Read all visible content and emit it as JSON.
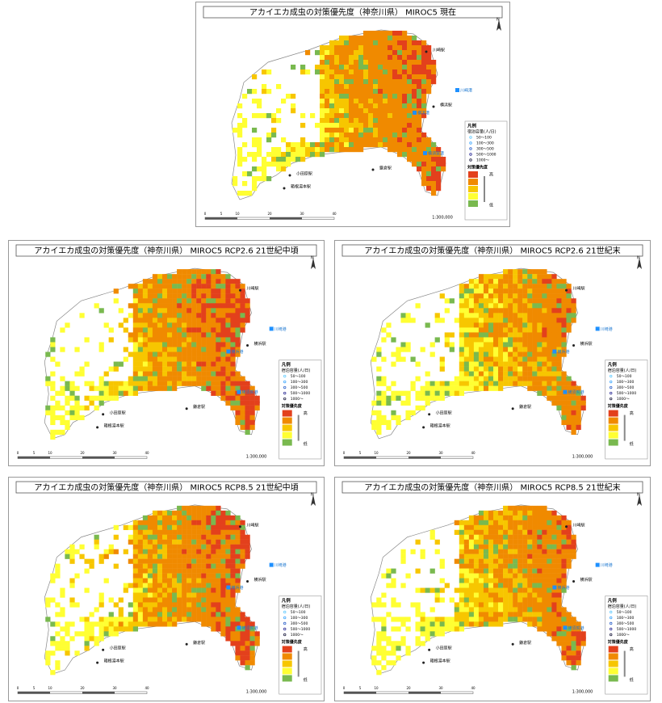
{
  "panels": [
    {
      "title": "アカイエカ成虫の対策優先度（神奈川県） MIROC5 現在",
      "scale": "1:300,000"
    },
    {
      "title": "アカイエカ成虫の対策優先度（神奈川県） MIROC5 RCP2.6 21世紀中頃",
      "scale": "1:300,000"
    },
    {
      "title": "アカイエカ成虫の対策優先度（神奈川県） MIROC5 RCP2.6 21世紀末",
      "scale": "1:300,000"
    },
    {
      "title": "アカイエカ成虫の対策優先度（神奈川県） MIROC5 RCP8.5 21世紀中頃",
      "scale": "1:300,000"
    },
    {
      "title": "アカイエカ成虫の対策優先度（神奈川県） MIROC5 RCP8.5 21世紀末",
      "scale": "1:300,000"
    }
  ],
  "stations": [
    "川崎駅",
    "横浜駅",
    "鎌倉駅",
    "小田原駅",
    "箱根湯本駅"
  ],
  "ports": [
    "川崎港",
    "横浜港",
    "横須賀港"
  ],
  "legend": {
    "title": "凡例",
    "capacity_title": "宿泊容量(人/日)",
    "capacity_classes": [
      "50～100",
      "100～300",
      "300～500",
      "500～1000",
      "1000～"
    ],
    "priority_title": "対策優先度",
    "high": "高",
    "low": "低"
  },
  "scalebar_labels": [
    "0",
    "5",
    "10",
    "20",
    "30",
    "40"
  ],
  "north": "N"
}
